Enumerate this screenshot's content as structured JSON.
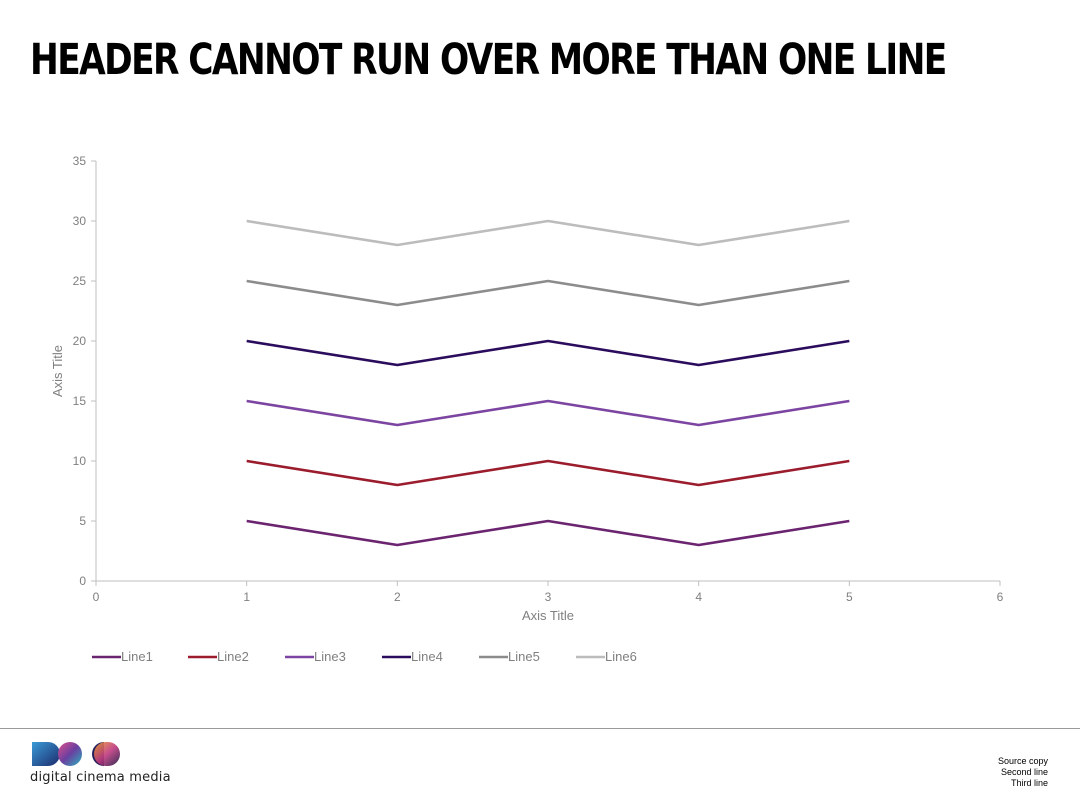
{
  "header": {
    "title": "HEADER CANNOT RUN OVER MORE THAN ONE LINE"
  },
  "chart_data": {
    "type": "line",
    "x": [
      1,
      2,
      3,
      4,
      5
    ],
    "series": [
      {
        "name": "Line1",
        "values": [
          5,
          3,
          5,
          3,
          5
        ],
        "color": "#6b2470"
      },
      {
        "name": "Line2",
        "values": [
          10,
          8,
          10,
          8,
          10
        ],
        "color": "#9b1c2c"
      },
      {
        "name": "Line3",
        "values": [
          15,
          13,
          15,
          13,
          15
        ],
        "color": "#7b45a1"
      },
      {
        "name": "Line4",
        "values": [
          20,
          18,
          20,
          18,
          20
        ],
        "color": "#2a0b5c"
      },
      {
        "name": "Line5",
        "values": [
          25,
          23,
          25,
          23,
          25
        ],
        "color": "#8c8c8c"
      },
      {
        "name": "Line6",
        "values": [
          30,
          28,
          30,
          28,
          30
        ],
        "color": "#bcbcbc"
      }
    ],
    "xlabel": "Axis Title",
    "ylabel": "Axis Title",
    "xlim": [
      0,
      6
    ],
    "ylim": [
      0,
      35
    ],
    "x_ticks": [
      "0",
      "1",
      "2",
      "3",
      "4",
      "5",
      "6"
    ],
    "y_ticks": [
      "0",
      "5",
      "10",
      "15",
      "20",
      "25",
      "30",
      "35"
    ],
    "grid": false,
    "legend": "bottom"
  },
  "footer": {
    "logo_text": "digital cinema media",
    "source_lines": [
      "Source copy",
      "Second line",
      "Third line"
    ]
  }
}
